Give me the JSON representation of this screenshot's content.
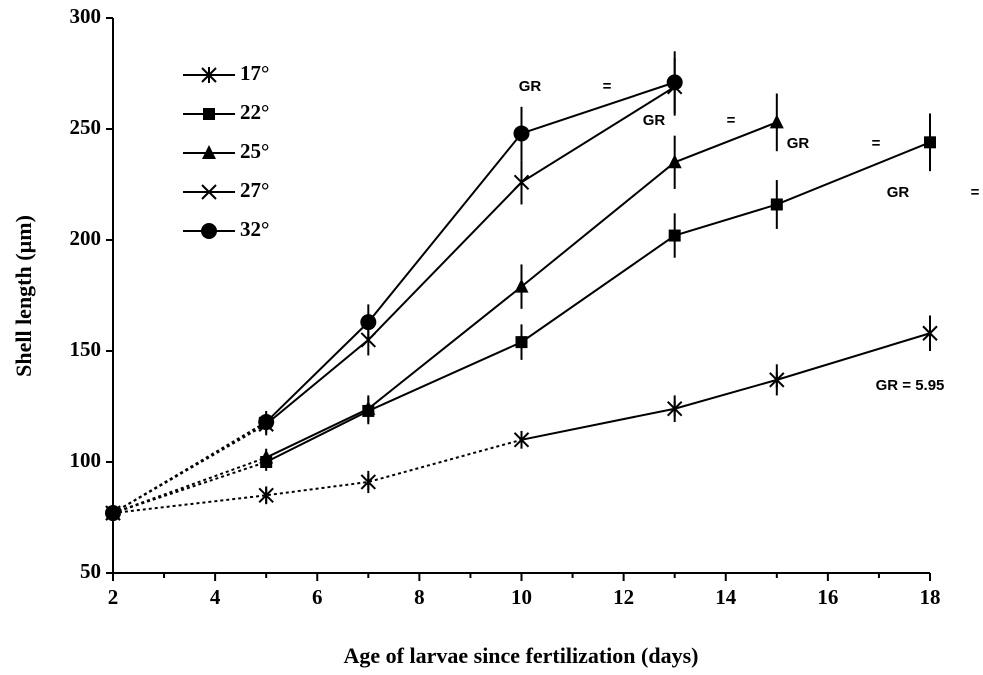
{
  "chart_data": {
    "type": "line",
    "x_label": "Age of larvae since fertilization (days)",
    "y_label": "Shell length (µm)",
    "x": [
      2,
      5,
      7,
      10,
      13,
      15,
      18
    ],
    "xlim": [
      2,
      18
    ],
    "xticks": [
      2,
      4,
      6,
      8,
      10,
      12,
      14,
      16,
      18
    ],
    "ylim": [
      50,
      300
    ],
    "yticks": [
      50,
      100,
      150,
      200,
      250,
      300
    ],
    "legend": "upper left",
    "color": "#000000",
    "series": [
      {
        "name": "17°",
        "marker": "asterisk",
        "dotted_to_x": 10,
        "values": [
          77,
          85,
          91,
          110,
          124,
          137,
          158
        ],
        "errors": [
          null,
          4,
          5,
          4,
          6,
          7,
          8
        ]
      },
      {
        "name": "22°",
        "marker": "square",
        "dotted_to_x": 5,
        "values": [
          77,
          100,
          123,
          154,
          202,
          216,
          244
        ],
        "errors": [
          null,
          4,
          6,
          8,
          10,
          11,
          13
        ]
      },
      {
        "name": "25°",
        "marker": "triangle",
        "dotted_to_x": 5,
        "values": [
          77,
          102,
          124,
          179,
          235,
          253,
          null
        ],
        "errors": [
          null,
          4,
          6,
          10,
          12,
          13,
          null
        ]
      },
      {
        "name": "27°",
        "marker": "x",
        "dotted_to_x": 5,
        "values": [
          77,
          117,
          155,
          226,
          269,
          null,
          null
        ],
        "errors": [
          null,
          5,
          7,
          10,
          13,
          null,
          null
        ]
      },
      {
        "name": "32°",
        "marker": "circle",
        "dotted_to_x": 5,
        "values": [
          77,
          118,
          163,
          248,
          271,
          null,
          null
        ],
        "errors": [
          null,
          5,
          8,
          12,
          14,
          null,
          null
        ]
      }
    ],
    "annotations": [
      "GR",
      "=",
      "GR",
      "=",
      "GR",
      "=",
      "GR",
      "=",
      "GR = 5.95"
    ]
  }
}
